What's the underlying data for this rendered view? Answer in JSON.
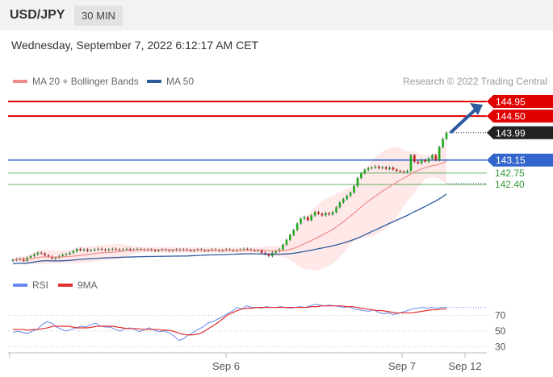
{
  "header": {
    "symbol": "USD/JPY",
    "interval": "30 MIN"
  },
  "datetime": "Wednesday, September 7, 2022 6:12:17 AM CET",
  "legend": {
    "ma20_label": "MA 20 + Bollinger Bands",
    "ma50_label": "MA 50",
    "credit": "Research © 2022 Trading Central",
    "rsi_label": "RSI",
    "ma9_label": "9MA"
  },
  "colors": {
    "ma20": "#f08c8c",
    "ma50": "#2e5a9e",
    "bands": "#fde0e0",
    "candle_up": "#22aa22",
    "candle_down": "#cc2222",
    "resistance": "#e00000",
    "pivot": "#3366cc",
    "support": "#339933",
    "price": "#222222",
    "rsi": "#6688ee",
    "rsi_ma": "#e03030"
  },
  "chart_data": {
    "type": "candlestick",
    "price_levels": [
      {
        "value": 144.95,
        "label": "144.95",
        "kind": "resistance"
      },
      {
        "value": 144.5,
        "label": "144.50",
        "kind": "resistance"
      },
      {
        "value": 143.99,
        "label": "143.99",
        "kind": "last-price"
      },
      {
        "value": 143.15,
        "label": "143.15",
        "kind": "pivot"
      },
      {
        "value": 142.75,
        "label": "142.75",
        "kind": "support"
      },
      {
        "value": 142.4,
        "label": "142.40",
        "kind": "support"
      }
    ],
    "x_ticks": [
      "Sep 6",
      "Sep 7",
      "Sep 12"
    ],
    "rsi_ticks": [
      70,
      50,
      30
    ],
    "rsi_ylim": [
      15,
      95
    ],
    "candle_closes": [
      140.08,
      140.1,
      140.12,
      140.05,
      140.15,
      140.2,
      140.25,
      140.3,
      140.28,
      140.22,
      140.18,
      140.12,
      140.15,
      140.2,
      140.24,
      140.26,
      140.3,
      140.35,
      140.42,
      140.38,
      140.4,
      140.36,
      140.38,
      140.4,
      140.42,
      140.4,
      140.38,
      140.4,
      140.42,
      140.4,
      140.38,
      140.4,
      140.42,
      140.38,
      140.4,
      140.42,
      140.4,
      140.38,
      140.4,
      140.38,
      140.36,
      140.38,
      140.4,
      140.38,
      140.36,
      140.38,
      140.4,
      140.38,
      140.4,
      140.38,
      140.36,
      140.38,
      140.4,
      140.38,
      140.36,
      140.38,
      140.4,
      140.38,
      140.36,
      140.38,
      140.4,
      140.38,
      140.36,
      140.38,
      140.4,
      140.42,
      140.4,
      140.38,
      140.36,
      140.38,
      140.3,
      140.25,
      140.2,
      140.3,
      140.35,
      140.4,
      140.55,
      140.7,
      140.85,
      141.0,
      141.2,
      141.35,
      141.4,
      141.3,
      141.45,
      141.55,
      141.5,
      141.45,
      141.52,
      141.48,
      141.55,
      141.7,
      141.85,
      141.95,
      142.05,
      142.15,
      142.35,
      142.6,
      142.75,
      142.85,
      142.9,
      142.92,
      142.95,
      142.9,
      142.93,
      142.88,
      142.92,
      142.86,
      142.82,
      142.8,
      142.78,
      142.82,
      143.3,
      143.1,
      143.05,
      143.15,
      143.1,
      143.2,
      143.3,
      143.15,
      143.55,
      143.8,
      143.99
    ],
    "rsi": [
      48,
      50,
      48,
      47,
      50,
      52,
      58,
      62,
      60,
      55,
      52,
      50,
      52,
      54,
      56,
      55,
      58,
      60,
      56,
      55,
      55,
      52,
      50,
      53,
      54,
      52,
      49,
      52,
      54,
      51,
      49,
      50,
      48,
      44,
      38,
      40,
      45,
      48,
      52,
      55,
      60,
      62,
      65,
      68,
      72,
      75,
      80,
      78,
      82,
      80,
      80,
      79,
      81,
      80,
      80,
      81,
      80,
      79,
      80,
      81,
      80,
      82,
      84,
      83,
      82,
      83,
      82,
      81,
      80,
      81,
      78,
      77,
      76,
      75,
      77,
      74,
      72,
      73,
      71,
      72,
      74,
      76,
      78,
      79,
      80,
      79,
      80,
      79,
      80,
      80
    ],
    "rsi_ma9": [
      52,
      52,
      52,
      51,
      52,
      52,
      53,
      54,
      56,
      56,
      56,
      56,
      55,
      54,
      54,
      54,
      55,
      56,
      56,
      56,
      56,
      55,
      54,
      53,
      53,
      53,
      52,
      52,
      52,
      52,
      51,
      51,
      50,
      48,
      46,
      45,
      45,
      46,
      48,
      52,
      56,
      60,
      65,
      70,
      73,
      76,
      78,
      79,
      79,
      80,
      80,
      80,
      80,
      80,
      80,
      80,
      80,
      80,
      80,
      80,
      81,
      81,
      82,
      82,
      82,
      82,
      82,
      81,
      81,
      80,
      79,
      78,
      77,
      76,
      76,
      75,
      74,
      73,
      73,
      73,
      73,
      74,
      75,
      76,
      77,
      77,
      78,
      78
    ]
  },
  "indicators": {
    "last_label": "143.99",
    "arrow_target": "144.95"
  }
}
